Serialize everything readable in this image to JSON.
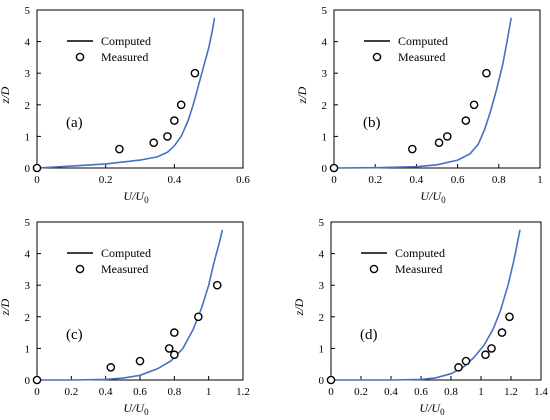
{
  "chart_data": [
    {
      "type": "scatter",
      "panel_label": "(a)",
      "xlabel": "U/U",
      "xlabel_sub": "0",
      "ylabel": "z/D",
      "xlim": [
        0,
        0.6
      ],
      "ylim": [
        0,
        5
      ],
      "xticks": [
        "0",
        "0.2",
        "0.4",
        "0.6"
      ],
      "yticks": [
        "0",
        "1",
        "2",
        "3",
        "4",
        "5"
      ],
      "legend": {
        "position": "top-left",
        "entries": [
          "Computed",
          "Measured"
        ]
      },
      "series": [
        {
          "name": "Computed",
          "kind": "line",
          "color": "#4472C4",
          "points": [
            [
              0,
              0.0
            ],
            [
              0.1,
              0.06
            ],
            [
              0.2,
              0.13
            ],
            [
              0.3,
              0.25
            ],
            [
              0.35,
              0.35
            ],
            [
              0.38,
              0.5
            ],
            [
              0.4,
              0.7
            ],
            [
              0.42,
              1.0
            ],
            [
              0.44,
              1.5
            ],
            [
              0.455,
              2.0
            ],
            [
              0.47,
              2.6
            ],
            [
              0.485,
              3.2
            ],
            [
              0.5,
              3.8
            ],
            [
              0.51,
              4.3
            ],
            [
              0.517,
              4.75
            ]
          ]
        },
        {
          "name": "Measured",
          "kind": "marker",
          "points": [
            [
              0,
              0.0
            ],
            [
              0.24,
              0.6
            ],
            [
              0.34,
              0.8
            ],
            [
              0.38,
              1.0
            ],
            [
              0.4,
              1.5
            ],
            [
              0.42,
              2.0
            ],
            [
              0.46,
              3.0
            ]
          ]
        }
      ]
    },
    {
      "type": "scatter",
      "panel_label": "(b)",
      "xlabel": "U/U",
      "xlabel_sub": "0",
      "ylabel": "z/D",
      "xlim": [
        0,
        1
      ],
      "ylim": [
        0,
        5
      ],
      "xticks": [
        "0",
        "0.2",
        "0.4",
        "0.6",
        "0.8",
        "1"
      ],
      "yticks": [
        "0",
        "1",
        "2",
        "3",
        "4",
        "5"
      ],
      "legend": {
        "position": "top-left",
        "entries": [
          "Computed",
          "Measured"
        ]
      },
      "series": [
        {
          "name": "Computed",
          "kind": "line",
          "color": "#4472C4",
          "points": [
            [
              0,
              0.0
            ],
            [
              0.2,
              0.01
            ],
            [
              0.4,
              0.04
            ],
            [
              0.5,
              0.1
            ],
            [
              0.6,
              0.25
            ],
            [
              0.66,
              0.45
            ],
            [
              0.7,
              0.75
            ],
            [
              0.73,
              1.2
            ],
            [
              0.76,
              1.8
            ],
            [
              0.79,
              2.5
            ],
            [
              0.82,
              3.3
            ],
            [
              0.84,
              4.0
            ],
            [
              0.86,
              4.75
            ]
          ]
        },
        {
          "name": "Measured",
          "kind": "marker",
          "points": [
            [
              0,
              0.0
            ],
            [
              0.38,
              0.6
            ],
            [
              0.51,
              0.8
            ],
            [
              0.55,
              1.0
            ],
            [
              0.64,
              1.5
            ],
            [
              0.68,
              2.0
            ],
            [
              0.74,
              3.0
            ]
          ]
        }
      ]
    },
    {
      "type": "scatter",
      "panel_label": "(c)",
      "xlabel": "U/U",
      "xlabel_sub": "0",
      "ylabel": "z/D",
      "xlim": [
        0,
        1.2
      ],
      "ylim": [
        0,
        5
      ],
      "xticks": [
        "0",
        "0.2",
        "0.4",
        "0.6",
        "0.8",
        "1",
        "1.2"
      ],
      "yticks": [
        "0",
        "1",
        "2",
        "3",
        "4",
        "5"
      ],
      "legend": {
        "position": "top-left",
        "entries": [
          "Computed",
          "Measured"
        ]
      },
      "series": [
        {
          "name": "Computed",
          "kind": "line",
          "color": "#4472C4",
          "points": [
            [
              0,
              0.0
            ],
            [
              0.2,
              0.0
            ],
            [
              0.4,
              0.02
            ],
            [
              0.5,
              0.06
            ],
            [
              0.6,
              0.15
            ],
            [
              0.7,
              0.35
            ],
            [
              0.78,
              0.6
            ],
            [
              0.85,
              1.0
            ],
            [
              0.91,
              1.6
            ],
            [
              0.96,
              2.3
            ],
            [
              1.0,
              3.0
            ],
            [
              1.03,
              3.7
            ],
            [
              1.06,
              4.3
            ],
            [
              1.08,
              4.75
            ]
          ]
        },
        {
          "name": "Measured",
          "kind": "marker",
          "points": [
            [
              0,
              0.0
            ],
            [
              0.43,
              0.4
            ],
            [
              0.6,
              0.6
            ],
            [
              0.77,
              1.0
            ],
            [
              0.8,
              0.8
            ],
            [
              0.8,
              1.5
            ],
            [
              0.94,
              2.0
            ],
            [
              1.05,
              3.0
            ]
          ]
        }
      ]
    },
    {
      "type": "scatter",
      "panel_label": "(d)",
      "xlabel": "U/U",
      "xlabel_sub": "0",
      "ylabel": "z/D",
      "xlim": [
        0,
        1.4
      ],
      "ylim": [
        0,
        5
      ],
      "xticks": [
        "0",
        "0.2",
        "0.4",
        "0.6",
        "0.8",
        "1",
        "1.2",
        "1.4"
      ],
      "yticks": [
        "0",
        "1",
        "2",
        "3",
        "4",
        "5"
      ],
      "legend": {
        "position": "top-left",
        "entries": [
          "Computed",
          "Measured"
        ]
      },
      "series": [
        {
          "name": "Computed",
          "kind": "line",
          "color": "#4472C4",
          "points": [
            [
              0,
              0.0
            ],
            [
              0.4,
              0.0
            ],
            [
              0.6,
              0.02
            ],
            [
              0.7,
              0.07
            ],
            [
              0.8,
              0.2
            ],
            [
              0.88,
              0.4
            ],
            [
              0.95,
              0.7
            ],
            [
              1.02,
              1.1
            ],
            [
              1.08,
              1.6
            ],
            [
              1.13,
              2.2
            ],
            [
              1.18,
              3.0
            ],
            [
              1.22,
              3.8
            ],
            [
              1.26,
              4.75
            ]
          ]
        },
        {
          "name": "Measured",
          "kind": "marker",
          "points": [
            [
              0,
              0.0
            ],
            [
              0.85,
              0.4
            ],
            [
              0.9,
              0.6
            ],
            [
              1.03,
              0.8
            ],
            [
              1.07,
              1.0
            ],
            [
              1.14,
              1.5
            ],
            [
              1.19,
              2.0
            ]
          ]
        }
      ]
    }
  ]
}
